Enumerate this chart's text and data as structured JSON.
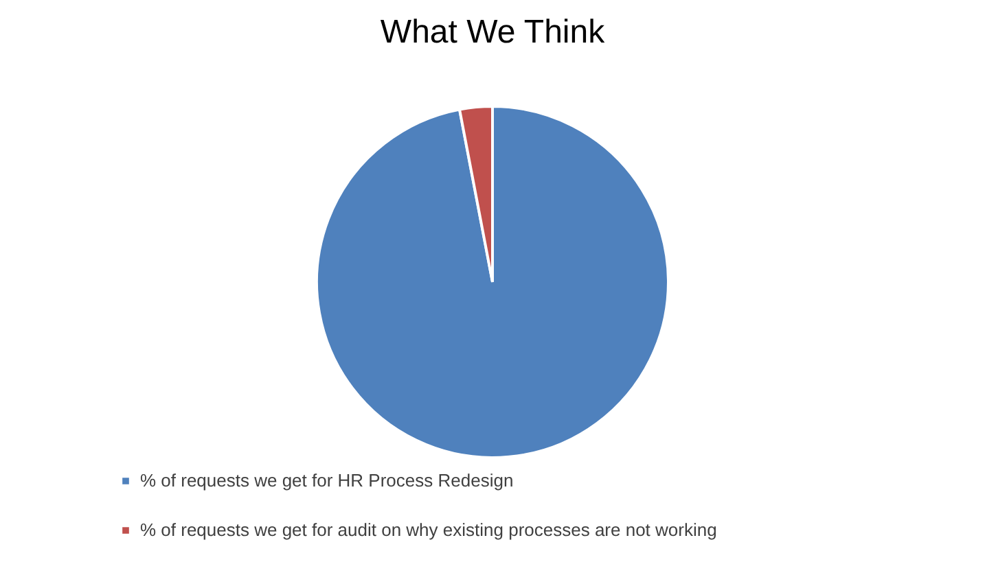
{
  "chart_data": {
    "type": "pie",
    "title": "What We Think",
    "categories": [
      "% of requests we get for HR Process Redesign",
      "% of requests we get for audit on why existing processes are not working"
    ],
    "values": [
      97,
      3
    ],
    "colors": [
      "#4f81bd",
      "#c0504d"
    ],
    "legend": "bottom"
  }
}
